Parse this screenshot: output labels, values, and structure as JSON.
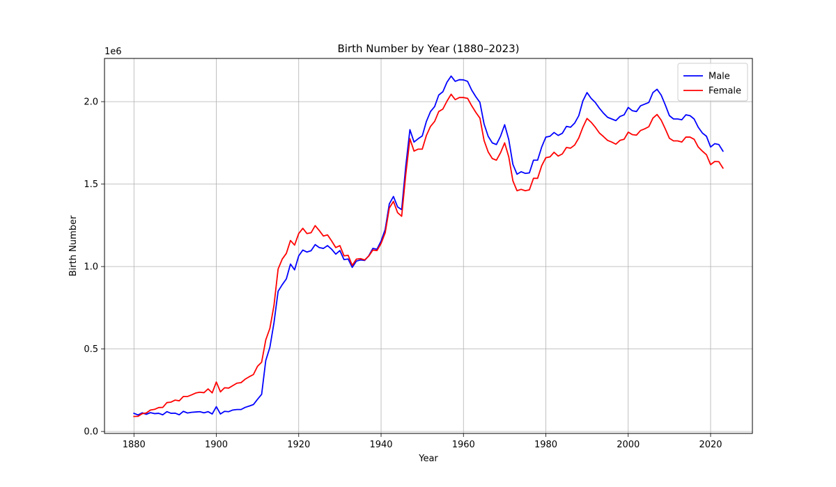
{
  "chart_data": {
    "type": "line",
    "title": "Birth Number by Year (1880–2023)",
    "xlabel": "Year",
    "ylabel": "Birth Number",
    "y_offset_text": "1e6",
    "xlim": [
      1872.85,
      2030.15
    ],
    "ylim": [
      -0.012,
      2.262
    ],
    "x_ticks": [
      1880,
      1900,
      1920,
      1940,
      1960,
      1980,
      2000,
      2020
    ],
    "y_ticks": [
      0.0,
      0.5,
      1.0,
      1.5,
      2.0
    ],
    "y_tick_labels": [
      "0.0",
      "0.5",
      "1.0",
      "1.5",
      "2.0"
    ],
    "grid": true,
    "legend_position": "top-right",
    "series": [
      {
        "name": "Male",
        "color": "#0000ff",
        "points": [
          [
            1880,
            0.11
          ],
          [
            1881,
            0.1
          ],
          [
            1882,
            0.113
          ],
          [
            1883,
            0.104
          ],
          [
            1884,
            0.114
          ],
          [
            1885,
            0.108
          ],
          [
            1886,
            0.11
          ],
          [
            1887,
            0.101
          ],
          [
            1888,
            0.12
          ],
          [
            1889,
            0.11
          ],
          [
            1890,
            0.111
          ],
          [
            1891,
            0.101
          ],
          [
            1892,
            0.122
          ],
          [
            1893,
            0.112
          ],
          [
            1894,
            0.116
          ],
          [
            1895,
            0.118
          ],
          [
            1896,
            0.12
          ],
          [
            1897,
            0.113
          ],
          [
            1898,
            0.12
          ],
          [
            1899,
            0.106
          ],
          [
            1900,
            0.15
          ],
          [
            1901,
            0.106
          ],
          [
            1902,
            0.122
          ],
          [
            1903,
            0.12
          ],
          [
            1904,
            0.13
          ],
          [
            1905,
            0.133
          ],
          [
            1906,
            0.133
          ],
          [
            1907,
            0.146
          ],
          [
            1908,
            0.154
          ],
          [
            1909,
            0.163
          ],
          [
            1910,
            0.195
          ],
          [
            1911,
            0.225
          ],
          [
            1912,
            0.43
          ],
          [
            1913,
            0.51
          ],
          [
            1914,
            0.66
          ],
          [
            1915,
            0.85
          ],
          [
            1916,
            0.89
          ],
          [
            1917,
            0.925
          ],
          [
            1918,
            1.015
          ],
          [
            1919,
            0.98
          ],
          [
            1920,
            1.065
          ],
          [
            1921,
            1.1
          ],
          [
            1922,
            1.088
          ],
          [
            1923,
            1.096
          ],
          [
            1924,
            1.133
          ],
          [
            1925,
            1.115
          ],
          [
            1926,
            1.11
          ],
          [
            1927,
            1.127
          ],
          [
            1928,
            1.105
          ],
          [
            1929,
            1.075
          ],
          [
            1930,
            1.097
          ],
          [
            1931,
            1.042
          ],
          [
            1932,
            1.046
          ],
          [
            1933,
            0.995
          ],
          [
            1934,
            1.033
          ],
          [
            1935,
            1.04
          ],
          [
            1936,
            1.037
          ],
          [
            1937,
            1.065
          ],
          [
            1938,
            1.11
          ],
          [
            1939,
            1.105
          ],
          [
            1940,
            1.155
          ],
          [
            1941,
            1.225
          ],
          [
            1942,
            1.38
          ],
          [
            1943,
            1.425
          ],
          [
            1944,
            1.362
          ],
          [
            1945,
            1.345
          ],
          [
            1946,
            1.61
          ],
          [
            1947,
            1.83
          ],
          [
            1948,
            1.755
          ],
          [
            1949,
            1.775
          ],
          [
            1950,
            1.792
          ],
          [
            1951,
            1.88
          ],
          [
            1952,
            1.94
          ],
          [
            1953,
            1.97
          ],
          [
            1954,
            2.04
          ],
          [
            1955,
            2.06
          ],
          [
            1956,
            2.118
          ],
          [
            1957,
            2.155
          ],
          [
            1958,
            2.123
          ],
          [
            1959,
            2.133
          ],
          [
            1960,
            2.132
          ],
          [
            1961,
            2.123
          ],
          [
            1962,
            2.07
          ],
          [
            1963,
            2.03
          ],
          [
            1964,
            1.995
          ],
          [
            1965,
            1.865
          ],
          [
            1966,
            1.79
          ],
          [
            1967,
            1.75
          ],
          [
            1968,
            1.74
          ],
          [
            1969,
            1.79
          ],
          [
            1970,
            1.86
          ],
          [
            1971,
            1.77
          ],
          [
            1972,
            1.62
          ],
          [
            1973,
            1.56
          ],
          [
            1974,
            1.575
          ],
          [
            1975,
            1.565
          ],
          [
            1976,
            1.568
          ],
          [
            1977,
            1.645
          ],
          [
            1978,
            1.645
          ],
          [
            1979,
            1.725
          ],
          [
            1980,
            1.785
          ],
          [
            1981,
            1.79
          ],
          [
            1982,
            1.813
          ],
          [
            1983,
            1.795
          ],
          [
            1984,
            1.808
          ],
          [
            1985,
            1.85
          ],
          [
            1986,
            1.845
          ],
          [
            1987,
            1.87
          ],
          [
            1988,
            1.915
          ],
          [
            1989,
            2.005
          ],
          [
            1990,
            2.055
          ],
          [
            1991,
            2.02
          ],
          [
            1992,
            1.995
          ],
          [
            1993,
            1.96
          ],
          [
            1994,
            1.93
          ],
          [
            1995,
            1.905
          ],
          [
            1996,
            1.895
          ],
          [
            1997,
            1.885
          ],
          [
            1998,
            1.91
          ],
          [
            1999,
            1.92
          ],
          [
            2000,
            1.965
          ],
          [
            2001,
            1.945
          ],
          [
            2002,
            1.94
          ],
          [
            2003,
            1.975
          ],
          [
            2004,
            1.985
          ],
          [
            2005,
            1.995
          ],
          [
            2006,
            2.055
          ],
          [
            2007,
            2.075
          ],
          [
            2008,
            2.04
          ],
          [
            2009,
            1.98
          ],
          [
            2010,
            1.915
          ],
          [
            2011,
            1.895
          ],
          [
            2012,
            1.895
          ],
          [
            2013,
            1.89
          ],
          [
            2014,
            1.92
          ],
          [
            2015,
            1.915
          ],
          [
            2016,
            1.895
          ],
          [
            2017,
            1.845
          ],
          [
            2018,
            1.81
          ],
          [
            2019,
            1.79
          ],
          [
            2020,
            1.725
          ],
          [
            2021,
            1.745
          ],
          [
            2022,
            1.74
          ],
          [
            2023,
            1.7
          ]
        ]
      },
      {
        "name": "Female",
        "color": "#ff0000",
        "points": [
          [
            1880,
            0.091
          ],
          [
            1881,
            0.092
          ],
          [
            1882,
            0.108
          ],
          [
            1883,
            0.112
          ],
          [
            1884,
            0.13
          ],
          [
            1885,
            0.134
          ],
          [
            1886,
            0.145
          ],
          [
            1887,
            0.146
          ],
          [
            1888,
            0.175
          ],
          [
            1889,
            0.178
          ],
          [
            1890,
            0.19
          ],
          [
            1891,
            0.186
          ],
          [
            1892,
            0.212
          ],
          [
            1893,
            0.212
          ],
          [
            1894,
            0.222
          ],
          [
            1895,
            0.233
          ],
          [
            1896,
            0.238
          ],
          [
            1897,
            0.235
          ],
          [
            1898,
            0.258
          ],
          [
            1899,
            0.234
          ],
          [
            1900,
            0.3
          ],
          [
            1901,
            0.24
          ],
          [
            1902,
            0.265
          ],
          [
            1903,
            0.263
          ],
          [
            1904,
            0.278
          ],
          [
            1905,
            0.293
          ],
          [
            1906,
            0.296
          ],
          [
            1907,
            0.317
          ],
          [
            1908,
            0.332
          ],
          [
            1909,
            0.345
          ],
          [
            1910,
            0.395
          ],
          [
            1911,
            0.42
          ],
          [
            1912,
            0.555
          ],
          [
            1913,
            0.625
          ],
          [
            1914,
            0.765
          ],
          [
            1915,
            0.985
          ],
          [
            1916,
            1.045
          ],
          [
            1917,
            1.08
          ],
          [
            1918,
            1.158
          ],
          [
            1919,
            1.13
          ],
          [
            1920,
            1.2
          ],
          [
            1921,
            1.232
          ],
          [
            1922,
            1.2
          ],
          [
            1923,
            1.205
          ],
          [
            1924,
            1.248
          ],
          [
            1925,
            1.218
          ],
          [
            1926,
            1.185
          ],
          [
            1927,
            1.192
          ],
          [
            1928,
            1.155
          ],
          [
            1929,
            1.115
          ],
          [
            1930,
            1.127
          ],
          [
            1931,
            1.065
          ],
          [
            1932,
            1.068
          ],
          [
            1933,
            1.007
          ],
          [
            1934,
            1.045
          ],
          [
            1935,
            1.048
          ],
          [
            1936,
            1.04
          ],
          [
            1937,
            1.063
          ],
          [
            1938,
            1.1
          ],
          [
            1939,
            1.097
          ],
          [
            1940,
            1.14
          ],
          [
            1941,
            1.205
          ],
          [
            1942,
            1.355
          ],
          [
            1943,
            1.395
          ],
          [
            1944,
            1.327
          ],
          [
            1945,
            1.305
          ],
          [
            1946,
            1.56
          ],
          [
            1947,
            1.775
          ],
          [
            1948,
            1.7
          ],
          [
            1949,
            1.712
          ],
          [
            1950,
            1.712
          ],
          [
            1951,
            1.795
          ],
          [
            1952,
            1.85
          ],
          [
            1953,
            1.88
          ],
          [
            1954,
            1.94
          ],
          [
            1955,
            1.955
          ],
          [
            1956,
            2.003
          ],
          [
            1957,
            2.045
          ],
          [
            1958,
            2.012
          ],
          [
            1959,
            2.025
          ],
          [
            1960,
            2.025
          ],
          [
            1961,
            2.02
          ],
          [
            1962,
            1.975
          ],
          [
            1963,
            1.935
          ],
          [
            1964,
            1.9
          ],
          [
            1965,
            1.765
          ],
          [
            1966,
            1.695
          ],
          [
            1967,
            1.655
          ],
          [
            1968,
            1.645
          ],
          [
            1969,
            1.69
          ],
          [
            1970,
            1.75
          ],
          [
            1971,
            1.665
          ],
          [
            1972,
            1.52
          ],
          [
            1973,
            1.46
          ],
          [
            1974,
            1.468
          ],
          [
            1975,
            1.46
          ],
          [
            1976,
            1.465
          ],
          [
            1977,
            1.535
          ],
          [
            1978,
            1.535
          ],
          [
            1979,
            1.612
          ],
          [
            1980,
            1.66
          ],
          [
            1981,
            1.665
          ],
          [
            1982,
            1.693
          ],
          [
            1983,
            1.67
          ],
          [
            1984,
            1.683
          ],
          [
            1985,
            1.722
          ],
          [
            1986,
            1.718
          ],
          [
            1987,
            1.737
          ],
          [
            1988,
            1.78
          ],
          [
            1989,
            1.845
          ],
          [
            1990,
            1.898
          ],
          [
            1991,
            1.875
          ],
          [
            1992,
            1.845
          ],
          [
            1993,
            1.81
          ],
          [
            1994,
            1.788
          ],
          [
            1995,
            1.765
          ],
          [
            1996,
            1.755
          ],
          [
            1997,
            1.742
          ],
          [
            1998,
            1.765
          ],
          [
            1999,
            1.772
          ],
          [
            2000,
            1.815
          ],
          [
            2001,
            1.8
          ],
          [
            2002,
            1.797
          ],
          [
            2003,
            1.825
          ],
          [
            2004,
            1.835
          ],
          [
            2005,
            1.848
          ],
          [
            2006,
            1.9
          ],
          [
            2007,
            1.922
          ],
          [
            2008,
            1.888
          ],
          [
            2009,
            1.835
          ],
          [
            2010,
            1.778
          ],
          [
            2011,
            1.762
          ],
          [
            2012,
            1.762
          ],
          [
            2013,
            1.755
          ],
          [
            2014,
            1.785
          ],
          [
            2015,
            1.785
          ],
          [
            2016,
            1.772
          ],
          [
            2017,
            1.725
          ],
          [
            2018,
            1.7
          ],
          [
            2019,
            1.678
          ],
          [
            2020,
            1.618
          ],
          [
            2021,
            1.637
          ],
          [
            2022,
            1.636
          ],
          [
            2023,
            1.597
          ]
        ]
      }
    ]
  }
}
